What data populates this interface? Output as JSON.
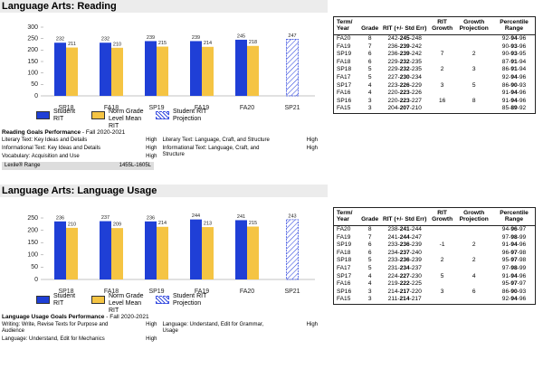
{
  "sections": [
    {
      "title": "Language Arts: Reading",
      "goals": {
        "title": "Reading Goals Performance",
        "term": "- Fall 2020-2021",
        "items": [
          {
            "goal": "Literary Text: Key Ideas and Details",
            "level": "High"
          },
          {
            "goal": "Informational Text: Key Ideas and Details",
            "level": "High"
          },
          {
            "goal": "Vocabulary: Acquisition and Use",
            "level": "High"
          },
          {
            "goal": "Literary Text: Language, Craft, and Structure",
            "level": "High"
          },
          {
            "goal": "Informational Text: Language, Craft, and Structure",
            "level": "High"
          }
        ],
        "lexile": {
          "label": "Lexile® Range",
          "value": "1455L-1605L"
        }
      },
      "table": {
        "headers": [
          "Term/ Year",
          "Grade",
          "RIT (+/- Std Err)",
          "RIT Growth",
          "Growth Projection",
          "Percentile Range"
        ],
        "rows": [
          [
            "FA20",
            8,
            "242-245-248",
            null,
            null,
            "92-94-96"
          ],
          [
            "FA19",
            7,
            "236-239-242",
            null,
            null,
            "90-93-96"
          ],
          [
            "SP19",
            6,
            "236-239-242",
            7,
            2,
            "90-93-95"
          ],
          [
            "FA18",
            6,
            "229-232-235",
            null,
            null,
            "87-91-94"
          ],
          [
            "SP18",
            5,
            "229-232-235",
            2,
            3,
            "86-91-94"
          ],
          [
            "FA17",
            5,
            "227-230-234",
            null,
            null,
            "92-94-96"
          ],
          [
            "SP17",
            4,
            "223-226-229",
            3,
            5,
            "86-90-93"
          ],
          [
            "FA16",
            4,
            "220-223-226",
            null,
            null,
            "91-94-96"
          ],
          [
            "SP16",
            3,
            "220-223-227",
            16,
            8,
            "91-94-96"
          ],
          [
            "FA15",
            3,
            "204-207-210",
            null,
            null,
            "85-89-92"
          ]
        ]
      }
    },
    {
      "title": "Language Arts: Language Usage",
      "goals": {
        "title": "Language Usage Goals Performance",
        "term": "- Fall 2020-2021",
        "items": [
          {
            "goal": "Writing: Write, Revise Texts for Purpose and Audience",
            "level": "High"
          },
          {
            "goal": "Language: Understand, Edit for Mechanics",
            "level": "High"
          },
          {
            "goal": "Language: Understand, Edit for Grammar, Usage",
            "level": "High"
          }
        ]
      },
      "table": {
        "headers": [
          "Term/ Year",
          "Grade",
          "RIT (+/- Std Err)",
          "RIT Growth",
          "Growth Projection",
          "Percentile Range"
        ],
        "rows": [
          [
            "FA20",
            8,
            "238-241-244",
            null,
            null,
            "94-96-97"
          ],
          [
            "FA19",
            7,
            "241-244-247",
            null,
            null,
            "97-98-99"
          ],
          [
            "SP19",
            6,
            "233-236-239",
            -1,
            2,
            "91-94-96"
          ],
          [
            "FA18",
            6,
            "234-237-240",
            null,
            null,
            "96-97-98"
          ],
          [
            "SP18",
            5,
            "233-236-239",
            2,
            2,
            "95-97-98"
          ],
          [
            "FA17",
            5,
            "231-234-237",
            null,
            null,
            "97-98-99"
          ],
          [
            "SP17",
            4,
            "224-227-230",
            5,
            4,
            "91-94-96"
          ],
          [
            "FA16",
            4,
            "219-222-225",
            null,
            null,
            "95-97-97"
          ],
          [
            "SP16",
            3,
            "214-217-220",
            3,
            6,
            "86-90-93"
          ],
          [
            "FA15",
            3,
            "211-214-217",
            null,
            null,
            "92-94-96"
          ]
        ]
      }
    }
  ],
  "chart_data": [
    {
      "type": "bar",
      "categories": [
        "SP18",
        "FA18",
        "SP19",
        "FA19",
        "FA20",
        "SP21"
      ],
      "series": [
        {
          "name": "Student RIT",
          "color": "#1f3fd6",
          "values": [
            232,
            232,
            239,
            239,
            245,
            null
          ]
        },
        {
          "name": "Norm Grade Level Mean RIT",
          "color": "#f5c443",
          "values": [
            211,
            210,
            215,
            214,
            218,
            null
          ]
        },
        {
          "name": "Student RIT Projection",
          "color": "#3a4fe0",
          "pattern": "hatch",
          "values": [
            null,
            null,
            null,
            null,
            null,
            247
          ]
        }
      ],
      "ylim": [
        0,
        300
      ],
      "yticks": [
        0,
        50,
        100,
        150,
        200,
        250,
        300
      ],
      "grid": false
    },
    {
      "type": "bar",
      "categories": [
        "SP18",
        "FA18",
        "SP19",
        "FA19",
        "FA20",
        "SP21"
      ],
      "series": [
        {
          "name": "Student RIT",
          "color": "#1f3fd6",
          "values": [
            236,
            237,
            236,
            244,
            241,
            null
          ]
        },
        {
          "name": "Norm Grade Level Mean RIT",
          "color": "#f5c443",
          "values": [
            210,
            209,
            214,
            213,
            215,
            null
          ]
        },
        {
          "name": "Student RIT Projection",
          "color": "#3a4fe0",
          "pattern": "hatch",
          "values": [
            null,
            null,
            null,
            null,
            null,
            243
          ]
        }
      ],
      "ylim": [
        0,
        250
      ],
      "yticks": [
        0,
        50,
        100,
        150,
        200,
        250
      ],
      "grid": false
    }
  ]
}
